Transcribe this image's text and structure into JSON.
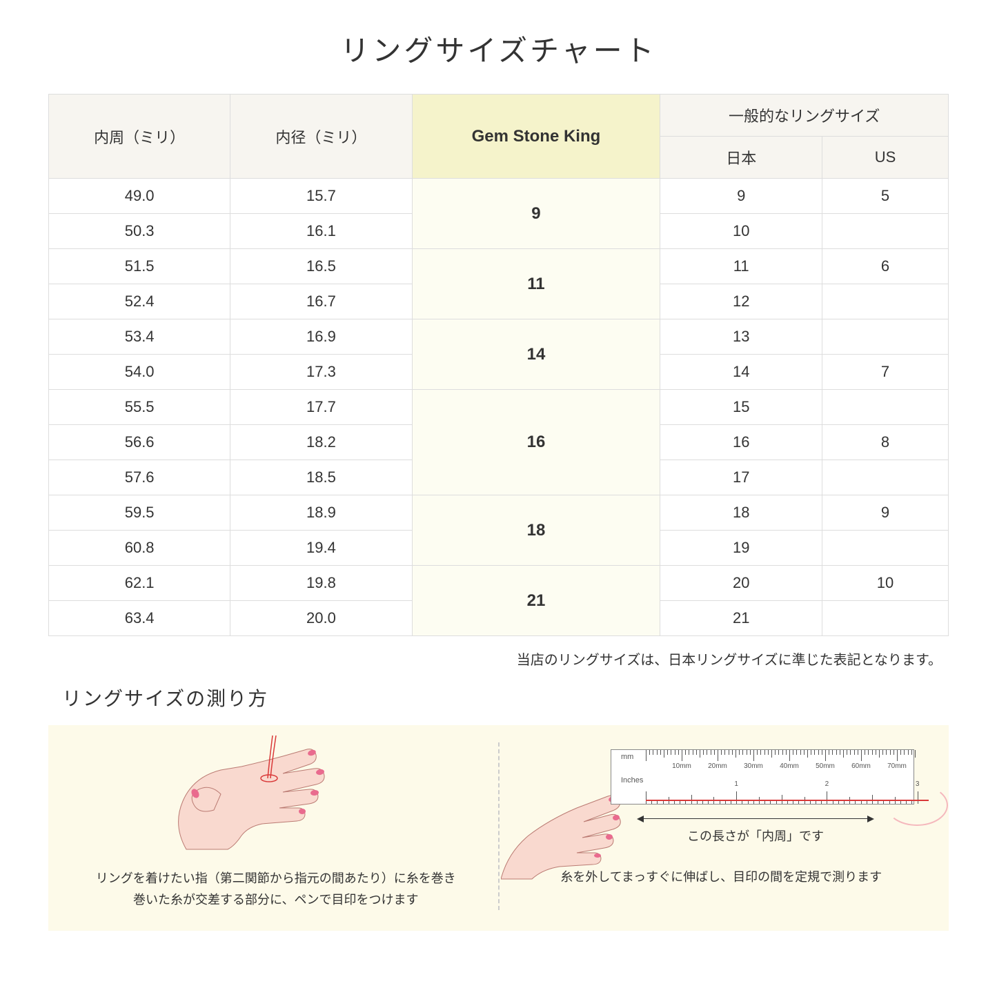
{
  "title": "リングサイズチャート",
  "table": {
    "headers": {
      "circumference": "内周（ミリ）",
      "diameter": "内径（ミリ）",
      "gsk": "Gem Stone King",
      "general_group": "一般的なリングサイズ",
      "japan": "日本",
      "us": "US"
    },
    "rows": [
      {
        "circ": "49.0",
        "diam": "15.7",
        "jp": "9",
        "us": "5"
      },
      {
        "circ": "50.3",
        "diam": "16.1",
        "jp": "10",
        "us": ""
      },
      {
        "circ": "51.5",
        "diam": "16.5",
        "jp": "11",
        "us": "6"
      },
      {
        "circ": "52.4",
        "diam": "16.7",
        "jp": "12",
        "us": ""
      },
      {
        "circ": "53.4",
        "diam": "16.9",
        "jp": "13",
        "us": ""
      },
      {
        "circ": "54.0",
        "diam": "17.3",
        "jp": "14",
        "us": "7"
      },
      {
        "circ": "55.5",
        "diam": "17.7",
        "jp": "15",
        "us": ""
      },
      {
        "circ": "56.6",
        "diam": "18.2",
        "jp": "16",
        "us": "8"
      },
      {
        "circ": "57.6",
        "diam": "18.5",
        "jp": "17",
        "us": ""
      },
      {
        "circ": "59.5",
        "diam": "18.9",
        "jp": "18",
        "us": "9"
      },
      {
        "circ": "60.8",
        "diam": "19.4",
        "jp": "19",
        "us": ""
      },
      {
        "circ": "62.1",
        "diam": "19.8",
        "jp": "20",
        "us": "10"
      },
      {
        "circ": "63.4",
        "diam": "20.0",
        "jp": "21",
        "us": ""
      }
    ],
    "gsk_groups": [
      {
        "label": "9",
        "span": 2
      },
      {
        "label": "11",
        "span": 2
      },
      {
        "label": "14",
        "span": 2
      },
      {
        "label": "16",
        "span": 3
      },
      {
        "label": "18",
        "span": 2
      },
      {
        "label": "21",
        "span": 2
      }
    ]
  },
  "note": "当店のリングサイズは、日本リングサイズに準じた表記となります。",
  "subtitle": "リングサイズの測り方",
  "instructions": {
    "left": "リングを着けたい指（第二関節から指元の間あたり）に糸を巻き\n巻いた糸が交差する部分に、ペンで目印をつけます",
    "right": "糸を外してまっすぐに伸ばし、目印の間を定規で測ります",
    "arrow_label": "この長さが「内周」です",
    "ruler": {
      "mm_label": "mm",
      "in_label": "Inches",
      "mm_ticks": [
        "10mm",
        "20mm",
        "30mm",
        "40mm",
        "50mm",
        "60mm",
        "70mm"
      ]
    }
  },
  "colors": {
    "header_bg": "#f7f5f0",
    "highlight_header_bg": "#f5f3cb",
    "highlight_cell_bg": "#fdfdf2",
    "border": "#dddddd",
    "instruction_bg": "#fdfae9",
    "skin": "#f9d9cf",
    "skin_dark": "#f0c4b5",
    "nail": "#e96b8e",
    "thread": "#d93838",
    "thread_light": "#f5b8bd"
  }
}
